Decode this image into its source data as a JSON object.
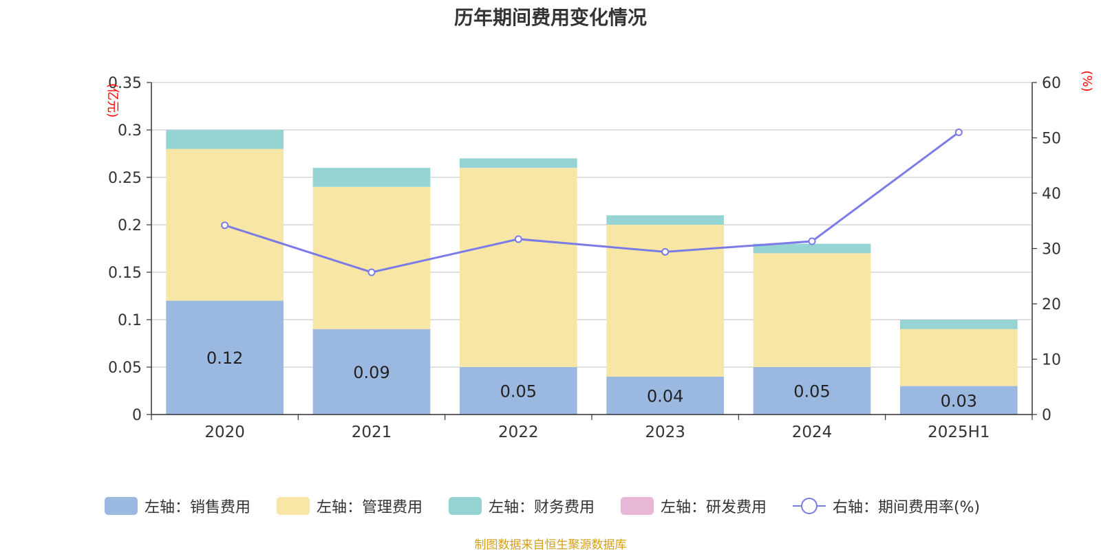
{
  "title": "历年期间费用变化情况",
  "source": "制图数据来自恒生聚源数据库",
  "chart_data": {
    "type": "bar",
    "stacked": true,
    "categories": [
      "2020",
      "2021",
      "2022",
      "2023",
      "2024",
      "2025H1"
    ],
    "left_axis": {
      "label": "(亿元)",
      "min": 0,
      "max": 0.35,
      "ticks": [
        "0",
        "0.05",
        "0.1",
        "0.15",
        "0.2",
        "0.25",
        "0.3",
        "0.35"
      ]
    },
    "right_axis": {
      "label": "(%)",
      "min": 0,
      "max": 60,
      "ticks": [
        "0",
        "10",
        "20",
        "30",
        "40",
        "50",
        "60"
      ]
    },
    "grid": true,
    "legend_position": "bottom",
    "series": [
      {
        "name": "左轴：销售费用",
        "axis": "left",
        "type": "bar",
        "color": "#9bb8e0",
        "values": [
          0.12,
          0.09,
          0.05,
          0.04,
          0.05,
          0.03
        ],
        "labels": [
          "0.12",
          "0.09",
          "0.05",
          "0.04",
          "0.05",
          "0.03"
        ]
      },
      {
        "name": "左轴：管理费用",
        "axis": "left",
        "type": "bar",
        "color": "#f7e6a6",
        "values": [
          0.16,
          0.15,
          0.21,
          0.16,
          0.12,
          0.06
        ]
      },
      {
        "name": "左轴：财务费用",
        "axis": "left",
        "type": "bar",
        "color": "#96d3d3",
        "values": [
          0.02,
          0.02,
          0.01,
          0.01,
          0.01,
          0.01
        ]
      },
      {
        "name": "左轴：研发费用",
        "axis": "left",
        "type": "bar",
        "color": "#e8b7d8",
        "values": [
          0,
          0,
          0,
          0,
          0,
          0
        ]
      },
      {
        "name": "右轴：期间费用率(%)",
        "axis": "right",
        "type": "line",
        "color": "#7b7be8",
        "values": [
          34.2,
          25.7,
          31.7,
          29.4,
          31.3,
          51.0
        ]
      }
    ]
  }
}
